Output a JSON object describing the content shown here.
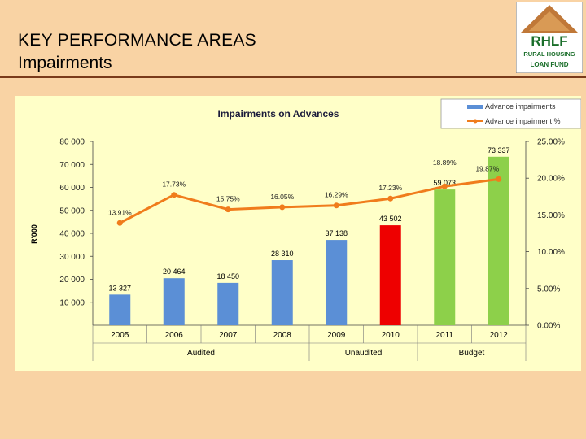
{
  "header": {
    "title": "KEY PERFORMANCE AREAS",
    "subtitle": "Impairments"
  },
  "logo": {
    "line1": "RHLF",
    "line2": "RURAL HOUSING",
    "line3": "LOAN FUND"
  },
  "chart_data": {
    "type": "bar",
    "title": "Impairments on Advances",
    "ylabel": "R'000",
    "categories": [
      "2005",
      "2006",
      "2007",
      "2008",
      "2009",
      "2010",
      "2011",
      "2012"
    ],
    "groups": [
      {
        "label": "Audited"
      },
      {
        "label": "Unaudited"
      },
      {
        "label": "Budget"
      }
    ],
    "series": [
      {
        "name": "Advance impairments",
        "kind": "bar",
        "axis": "left",
        "values": [
          13327,
          20464,
          18450,
          28310,
          37138,
          43502,
          59073,
          73337
        ],
        "labels": [
          "13 327",
          "20 464",
          "18 450",
          "28 310",
          "37 138",
          "43 502",
          "59 073",
          "73 337"
        ],
        "colors": [
          "#5b8fd6",
          "#5b8fd6",
          "#5b8fd6",
          "#5b8fd6",
          "#5b8fd6",
          "#ee0000",
          "#8dd04a",
          "#8dd04a"
        ]
      },
      {
        "name": "Advance impairment %",
        "kind": "line",
        "axis": "right",
        "values": [
          13.91,
          17.73,
          15.75,
          16.05,
          16.29,
          17.23,
          18.89,
          19.87
        ],
        "labels": [
          "13.91%",
          "17.73%",
          "15.75%",
          "16.05%",
          "16.29%",
          "17.23%",
          "18.89%",
          "19.87%"
        ],
        "color": "#f07c1c"
      }
    ],
    "left_axis": {
      "ylim": [
        0,
        80000
      ],
      "ticks": [
        10000,
        20000,
        30000,
        40000,
        50000,
        60000,
        70000,
        80000
      ],
      "tick_labels": [
        "10 000",
        "20 000",
        "30 000",
        "40 000",
        "50 000",
        "60 000",
        "70 000",
        "80 000"
      ]
    },
    "right_axis": {
      "ylim": [
        0,
        25
      ],
      "ticks": [
        0,
        5,
        10,
        15,
        20,
        25
      ],
      "tick_labels": [
        "0.00%",
        "5.00%",
        "10.00%",
        "15.00%",
        "20.00%",
        "25.00%"
      ]
    },
    "legend": "top-right"
  }
}
